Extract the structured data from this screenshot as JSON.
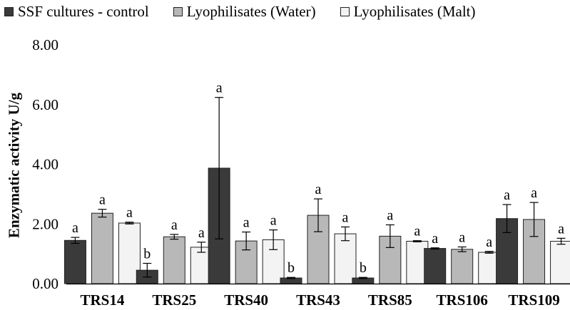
{
  "chart_data": {
    "type": "bar",
    "title": "",
    "xlabel": "",
    "ylabel": "Enzymatic activity U/g",
    "ylim": [
      0,
      8
    ],
    "yticks": [
      "0.00",
      "2.00",
      "4.00",
      "6.00",
      "8.00"
    ],
    "grid": false,
    "legend_position": "top",
    "categories": [
      "TRS14",
      "TRS25",
      "TRS40",
      "TRS43",
      "TRS85",
      "TRS106",
      "TRS109"
    ],
    "series": [
      {
        "name": "SSF cultures - control",
        "color": "#3a3a3a",
        "values": [
          1.45,
          0.45,
          3.87,
          0.19,
          0.19,
          1.18,
          2.18
        ],
        "errors": [
          0.1,
          0.23,
          2.37,
          0.02,
          0.02,
          0.02,
          0.47
        ],
        "letters": [
          "a",
          "b",
          "a",
          "b",
          "b",
          "a",
          "a"
        ]
      },
      {
        "name": "Lyophilisates (Water)",
        "color": "#b8b8b8",
        "values": [
          2.36,
          1.57,
          1.43,
          2.29,
          1.59,
          1.15,
          2.15
        ],
        "errors": [
          0.13,
          0.08,
          0.3,
          0.55,
          0.38,
          0.08,
          0.57
        ],
        "letters": [
          "a",
          "a",
          "a",
          "a",
          "a",
          "a",
          "a"
        ]
      },
      {
        "name": "Lyophilisates (Malt)",
        "color": "#f3f3f3",
        "values": [
          2.03,
          1.22,
          1.47,
          1.67,
          1.42,
          1.05,
          1.42
        ],
        "errors": [
          0.03,
          0.17,
          0.33,
          0.23,
          0.02,
          0.03,
          0.1
        ],
        "letters": [
          "a",
          "a",
          "a",
          "a",
          "a",
          "a",
          "a"
        ]
      }
    ]
  }
}
